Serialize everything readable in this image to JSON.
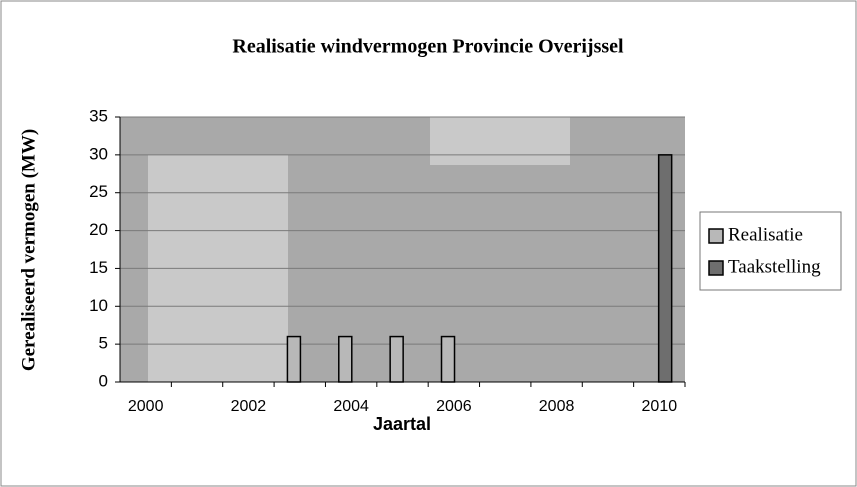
{
  "chart_data": {
    "type": "bar",
    "title": "Realisatie windvermogen Provincie Overijssel",
    "x_label": "Jaartal",
    "y_label": "Gerealiseerd vermogen (MW)",
    "categories": [
      2000,
      null,
      2002,
      null,
      2004,
      null,
      2006,
      null,
      2008,
      null,
      2010
    ],
    "series": [
      {
        "name": "Realisatie",
        "color": "#b8b8b8",
        "values": [
          null,
          null,
          null,
          6,
          6,
          6,
          6,
          null,
          null,
          null,
          null
        ]
      },
      {
        "name": "Taakstelling",
        "color": "#6e6e6e",
        "values": [
          null,
          null,
          null,
          null,
          null,
          null,
          null,
          null,
          null,
          null,
          30
        ]
      }
    ],
    "ylim": [
      0,
      35
    ],
    "yticks": [
      0,
      5,
      10,
      15,
      20,
      25,
      30,
      35
    ],
    "grid": true,
    "legend": "right"
  }
}
